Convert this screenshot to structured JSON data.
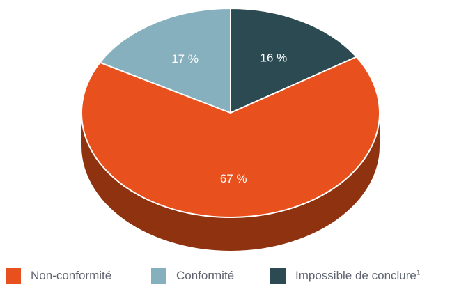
{
  "chart_data": {
    "type": "pie",
    "slices": [
      {
        "label": "Impossible de conclure",
        "footnote": "1",
        "value": 16,
        "value_label": "16 %",
        "color": "#2c4a52",
        "side_color": "#1e3338"
      },
      {
        "label": "Non-conformité",
        "value": 67,
        "value_label": "67 %",
        "color": "#e8511e",
        "side_color": "#8e3210"
      },
      {
        "label": "Conformité",
        "value": 17,
        "value_label": "17 %",
        "color": "#86b0bd",
        "side_color": "#5d8591"
      }
    ],
    "legend": [
      {
        "label": "Non-conformité",
        "color": "#e8511e"
      },
      {
        "label": "Conformité",
        "color": "#86b0bd"
      },
      {
        "label": "Impossible de conclure",
        "footnote": "1",
        "color": "#2c4a52"
      }
    ],
    "legend_position": "bottom",
    "style": "3d-tilted",
    "label_color": "#ffffff"
  }
}
